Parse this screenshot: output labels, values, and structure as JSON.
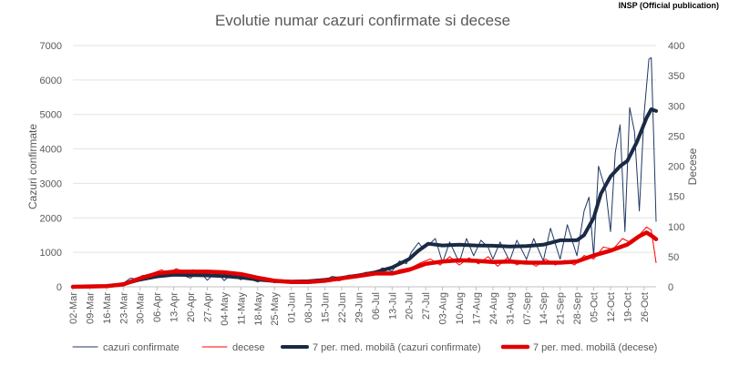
{
  "source_tag": "INSP (Official publication)",
  "chart_data": {
    "type": "line",
    "title": "Evolutie numar cazuri confirmate si decese",
    "ylabel_left": "Cazuri confirmate",
    "ylabel_right": "Decese",
    "ylim_left": [
      0,
      7000
    ],
    "ylim_right": [
      0,
      400
    ],
    "yticks_left": [
      "0",
      "1000",
      "2000",
      "3000",
      "4000",
      "5000",
      "6000",
      "7000"
    ],
    "yticks_right": [
      "0",
      "50",
      "100",
      "150",
      "200",
      "250",
      "300",
      "350",
      "400"
    ],
    "x_start": "2020-03-02",
    "x_end": "2020-10-31",
    "xtick_labels": [
      "02-Mar",
      "09-Mar",
      "16-Mar",
      "23-Mar",
      "30-Mar",
      "06-Apr",
      "13-Apr",
      "20-Apr",
      "27-Apr",
      "04-May",
      "11-May",
      "18-May",
      "25-May",
      "01-Jun",
      "08-Jun",
      "15-Jun",
      "22-Jun",
      "29-Jun",
      "06-Jul",
      "13-Jul",
      "20-Jul",
      "27-Jul",
      "03-Aug",
      "10-Aug",
      "17-Aug",
      "24-Aug",
      "31-Aug",
      "07-Sep",
      "14-Sep",
      "21-Sep",
      "28-Sep",
      "05-Oct",
      "12-Oct",
      "19-Oct",
      "26-Oct"
    ],
    "grid": true,
    "legend_position": "bottom",
    "colors": {
      "cases": "#1f3864",
      "deaths": "#ff0000",
      "cases_ma": "#1a2a44",
      "deaths_ma": "#e00000"
    },
    "series": [
      {
        "name": "cazuri confirmate",
        "axis": "left",
        "points": [
          [
            "2020-03-02",
            0
          ],
          [
            "2020-03-09",
            5
          ],
          [
            "2020-03-16",
            25
          ],
          [
            "2020-03-20",
            60
          ],
          [
            "2020-03-23",
            100
          ],
          [
            "2020-03-26",
            250
          ],
          [
            "2020-03-29",
            220
          ],
          [
            "2020-03-31",
            330
          ],
          [
            "2020-04-03",
            280
          ],
          [
            "2020-04-06",
            320
          ],
          [
            "2020-04-08",
            450
          ],
          [
            "2020-04-10",
            380
          ],
          [
            "2020-04-13",
            310
          ],
          [
            "2020-04-15",
            440
          ],
          [
            "2020-04-17",
            330
          ],
          [
            "2020-04-20",
            250
          ],
          [
            "2020-04-22",
            370
          ],
          [
            "2020-04-24",
            420
          ],
          [
            "2020-04-27",
            190
          ],
          [
            "2020-04-29",
            330
          ],
          [
            "2020-05-01",
            440
          ],
          [
            "2020-05-04",
            180
          ],
          [
            "2020-05-06",
            300
          ],
          [
            "2020-05-08",
            330
          ],
          [
            "2020-05-11",
            200
          ],
          [
            "2020-05-13",
            330
          ],
          [
            "2020-05-15",
            220
          ],
          [
            "2020-05-18",
            140
          ],
          [
            "2020-05-20",
            190
          ],
          [
            "2020-05-22",
            160
          ],
          [
            "2020-05-25",
            120
          ],
          [
            "2020-05-28",
            150
          ],
          [
            "2020-06-01",
            140
          ],
          [
            "2020-06-04",
            170
          ],
          [
            "2020-06-08",
            120
          ],
          [
            "2020-06-11",
            200
          ],
          [
            "2020-06-15",
            180
          ],
          [
            "2020-06-18",
            300
          ],
          [
            "2020-06-22",
            260
          ],
          [
            "2020-06-25",
            340
          ],
          [
            "2020-06-29",
            300
          ],
          [
            "2020-07-02",
            420
          ],
          [
            "2020-07-06",
            400
          ],
          [
            "2020-07-09",
            550
          ],
          [
            "2020-07-13",
            450
          ],
          [
            "2020-07-16",
            750
          ],
          [
            "2020-07-19",
            670
          ],
          [
            "2020-07-21",
            1000
          ],
          [
            "2020-07-24",
            1280
          ],
          [
            "2020-07-26",
            1100
          ],
          [
            "2020-07-28",
            1200
          ],
          [
            "2020-07-31",
            1400
          ],
          [
            "2020-08-03",
            700
          ],
          [
            "2020-08-06",
            1300
          ],
          [
            "2020-08-10",
            700
          ],
          [
            "2020-08-13",
            1400
          ],
          [
            "2020-08-16",
            900
          ],
          [
            "2020-08-19",
            1350
          ],
          [
            "2020-08-22",
            1150
          ],
          [
            "2020-08-24",
            800
          ],
          [
            "2020-08-27",
            1300
          ],
          [
            "2020-08-31",
            750
          ],
          [
            "2020-09-03",
            1350
          ],
          [
            "2020-09-07",
            800
          ],
          [
            "2020-09-10",
            1400
          ],
          [
            "2020-09-14",
            750
          ],
          [
            "2020-09-17",
            1700
          ],
          [
            "2020-09-21",
            800
          ],
          [
            "2020-09-24",
            1800
          ],
          [
            "2020-09-28",
            900
          ],
          [
            "2020-10-01",
            2200
          ],
          [
            "2020-10-03",
            2600
          ],
          [
            "2020-10-05",
            900
          ],
          [
            "2020-10-07",
            3500
          ],
          [
            "2020-10-10",
            2800
          ],
          [
            "2020-10-12",
            1600
          ],
          [
            "2020-10-14",
            3900
          ],
          [
            "2020-10-16",
            4700
          ],
          [
            "2020-10-18",
            1600
          ],
          [
            "2020-10-20",
            5200
          ],
          [
            "2020-10-22",
            4500
          ],
          [
            "2020-10-24",
            2200
          ],
          [
            "2020-10-26",
            5000
          ],
          [
            "2020-10-28",
            6600
          ],
          [
            "2020-10-29",
            6650
          ],
          [
            "2020-10-30",
            4300
          ],
          [
            "2020-10-31",
            1900
          ]
        ]
      },
      {
        "name": "decese",
        "axis": "right",
        "points": [
          [
            "2020-03-02",
            0
          ],
          [
            "2020-03-16",
            0
          ],
          [
            "2020-03-23",
            3
          ],
          [
            "2020-03-27",
            12
          ],
          [
            "2020-03-31",
            18
          ],
          [
            "2020-04-04",
            22
          ],
          [
            "2020-04-08",
            28
          ],
          [
            "2020-04-11",
            22
          ],
          [
            "2020-04-14",
            30
          ],
          [
            "2020-04-18",
            24
          ],
          [
            "2020-04-21",
            28
          ],
          [
            "2020-04-25",
            22
          ],
          [
            "2020-04-28",
            26
          ],
          [
            "2020-05-02",
            18
          ],
          [
            "2020-05-06",
            24
          ],
          [
            "2020-05-10",
            16
          ],
          [
            "2020-05-14",
            20
          ],
          [
            "2020-05-18",
            14
          ],
          [
            "2020-05-22",
            12
          ],
          [
            "2020-05-27",
            9
          ],
          [
            "2020-06-01",
            6
          ],
          [
            "2020-06-06",
            9
          ],
          [
            "2020-06-11",
            6
          ],
          [
            "2020-06-16",
            12
          ],
          [
            "2020-06-21",
            10
          ],
          [
            "2020-06-26",
            16
          ],
          [
            "2020-07-01",
            20
          ],
          [
            "2020-07-06",
            24
          ],
          [
            "2020-07-11",
            20
          ],
          [
            "2020-07-16",
            28
          ],
          [
            "2020-07-21",
            32
          ],
          [
            "2020-07-25",
            40
          ],
          [
            "2020-07-29",
            46
          ],
          [
            "2020-08-02",
            36
          ],
          [
            "2020-08-06",
            50
          ],
          [
            "2020-08-10",
            36
          ],
          [
            "2020-08-14",
            48
          ],
          [
            "2020-08-18",
            38
          ],
          [
            "2020-08-22",
            50
          ],
          [
            "2020-08-26",
            34
          ],
          [
            "2020-08-30",
            48
          ],
          [
            "2020-09-03",
            36
          ],
          [
            "2020-09-07",
            44
          ],
          [
            "2020-09-11",
            34
          ],
          [
            "2020-09-15",
            46
          ],
          [
            "2020-09-19",
            36
          ],
          [
            "2020-09-23",
            44
          ],
          [
            "2020-09-27",
            36
          ],
          [
            "2020-10-01",
            52
          ],
          [
            "2020-10-05",
            46
          ],
          [
            "2020-10-09",
            66
          ],
          [
            "2020-10-13",
            62
          ],
          [
            "2020-10-17",
            80
          ],
          [
            "2020-10-21",
            72
          ],
          [
            "2020-10-24",
            86
          ],
          [
            "2020-10-27",
            99
          ],
          [
            "2020-10-29",
            94
          ],
          [
            "2020-10-31",
            40
          ]
        ]
      },
      {
        "name": "7 per. med. mobilă (cazuri confirmate)",
        "axis": "left",
        "points": [
          [
            "2020-03-02",
            0
          ],
          [
            "2020-03-16",
            15
          ],
          [
            "2020-03-23",
            80
          ],
          [
            "2020-03-30",
            210
          ],
          [
            "2020-04-06",
            300
          ],
          [
            "2020-04-13",
            350
          ],
          [
            "2020-04-20",
            340
          ],
          [
            "2020-04-27",
            330
          ],
          [
            "2020-05-04",
            310
          ],
          [
            "2020-05-11",
            270
          ],
          [
            "2020-05-18",
            210
          ],
          [
            "2020-05-25",
            170
          ],
          [
            "2020-06-01",
            150
          ],
          [
            "2020-06-08",
            160
          ],
          [
            "2020-06-15",
            200
          ],
          [
            "2020-06-22",
            260
          ],
          [
            "2020-06-29",
            330
          ],
          [
            "2020-07-06",
            420
          ],
          [
            "2020-07-13",
            560
          ],
          [
            "2020-07-20",
            800
          ],
          [
            "2020-07-24",
            1050
          ],
          [
            "2020-07-28",
            1250
          ],
          [
            "2020-08-03",
            1200
          ],
          [
            "2020-08-10",
            1220
          ],
          [
            "2020-08-17",
            1200
          ],
          [
            "2020-08-24",
            1190
          ],
          [
            "2020-08-31",
            1170
          ],
          [
            "2020-09-07",
            1180
          ],
          [
            "2020-09-14",
            1220
          ],
          [
            "2020-09-21",
            1350
          ],
          [
            "2020-09-28",
            1350
          ],
          [
            "2020-10-01",
            1500
          ],
          [
            "2020-10-05",
            2000
          ],
          [
            "2020-10-08",
            2700
          ],
          [
            "2020-10-12",
            3200
          ],
          [
            "2020-10-16",
            3500
          ],
          [
            "2020-10-19",
            3650
          ],
          [
            "2020-10-23",
            4200
          ],
          [
            "2020-10-27",
            4900
          ],
          [
            "2020-10-29",
            5150
          ],
          [
            "2020-10-31",
            5100
          ]
        ]
      },
      {
        "name": "7 per. med. mobilă (decese)",
        "axis": "right",
        "points": [
          [
            "2020-03-02",
            0
          ],
          [
            "2020-03-16",
            1
          ],
          [
            "2020-03-23",
            4
          ],
          [
            "2020-03-30",
            14
          ],
          [
            "2020-04-06",
            22
          ],
          [
            "2020-04-13",
            25
          ],
          [
            "2020-04-20",
            25
          ],
          [
            "2020-04-27",
            25
          ],
          [
            "2020-05-04",
            24
          ],
          [
            "2020-05-11",
            21
          ],
          [
            "2020-05-18",
            15
          ],
          [
            "2020-05-25",
            10
          ],
          [
            "2020-06-01",
            8
          ],
          [
            "2020-06-08",
            8
          ],
          [
            "2020-06-15",
            10
          ],
          [
            "2020-06-22",
            14
          ],
          [
            "2020-06-29",
            18
          ],
          [
            "2020-07-06",
            22
          ],
          [
            "2020-07-13",
            22
          ],
          [
            "2020-07-20",
            28
          ],
          [
            "2020-07-27",
            38
          ],
          [
            "2020-08-03",
            42
          ],
          [
            "2020-08-10",
            44
          ],
          [
            "2020-08-17",
            43
          ],
          [
            "2020-08-24",
            41
          ],
          [
            "2020-08-31",
            42
          ],
          [
            "2020-09-07",
            40
          ],
          [
            "2020-09-14",
            40
          ],
          [
            "2020-09-21",
            40
          ],
          [
            "2020-09-28",
            42
          ],
          [
            "2020-10-05",
            52
          ],
          [
            "2020-10-12",
            60
          ],
          [
            "2020-10-19",
            70
          ],
          [
            "2020-10-24",
            84
          ],
          [
            "2020-10-27",
            90
          ],
          [
            "2020-10-29",
            85
          ],
          [
            "2020-10-31",
            79
          ]
        ]
      }
    ]
  }
}
